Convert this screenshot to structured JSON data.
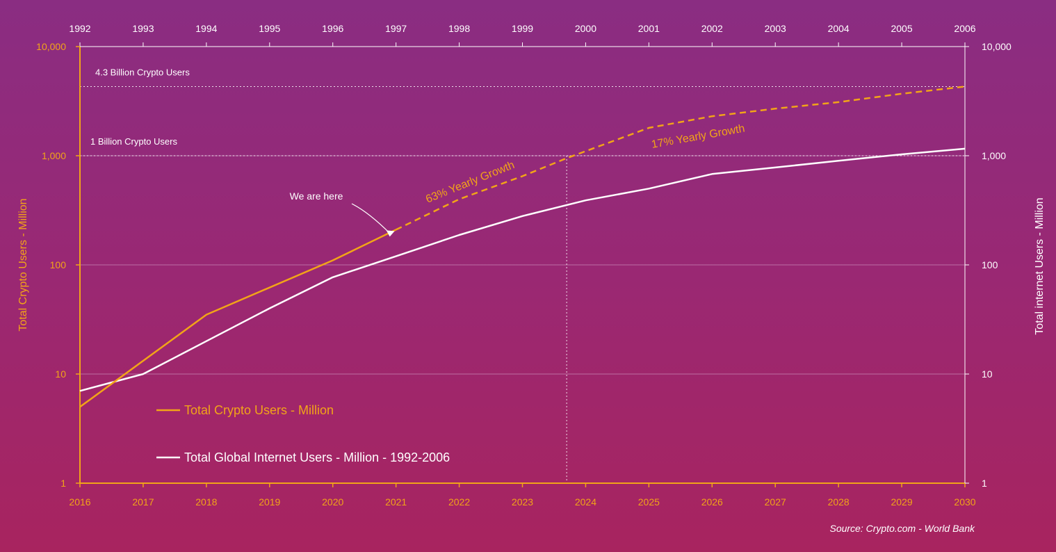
{
  "colors": {
    "crypto": "#f2a418",
    "internet": "#ffffff",
    "grid": "#d9a8cf",
    "background_top": "#8a2d82",
    "background_bottom": "#a8245f"
  },
  "chart_data": {
    "type": "line",
    "scale": "log",
    "x_bottom": [
      "2016",
      "2017",
      "2018",
      "2019",
      "2020",
      "2021",
      "2022",
      "2023",
      "2024",
      "2025",
      "2026",
      "2027",
      "2028",
      "2029",
      "2030"
    ],
    "x_top": [
      "1992",
      "1993",
      "1994",
      "1995",
      "1996",
      "1997",
      "1998",
      "1999",
      "2000",
      "2001",
      "2002",
      "2003",
      "2004",
      "2005",
      "2006"
    ],
    "y_ticks": [
      "1",
      "10",
      "100",
      "1,000",
      "10,000"
    ],
    "ylim": [
      1,
      10000
    ],
    "ylabel_left": "Total Crypto Users - Million",
    "ylabel_right": "Total internet Users - Million",
    "series": [
      {
        "name": "Total Crypto Users - Million",
        "color": "#f2a418",
        "x": [
          2016,
          2018,
          2020,
          2021
        ],
        "values": [
          5,
          35,
          110,
          210
        ],
        "projection": {
          "x": [
            2021,
            2022,
            2023,
            2023.7,
            2025,
            2026,
            2027,
            2028,
            2029,
            2030
          ],
          "values": [
            210,
            400,
            650,
            950,
            1800,
            2300,
            2700,
            3100,
            3700,
            4300
          ]
        }
      },
      {
        "name": "Total Global Internet Users - Million - 1992-2006",
        "color": "#ffffff",
        "x": [
          1992,
          1993,
          1994,
          1995,
          1996,
          1997,
          1998,
          1999,
          2000,
          2001,
          2002,
          2003,
          2004,
          2005,
          2006
        ],
        "values": [
          7,
          10,
          20,
          40,
          77,
          120,
          188,
          280,
          390,
          500,
          680,
          780,
          900,
          1030,
          1160
        ]
      }
    ],
    "reference_lines": [
      {
        "label": "4.3 Billion Crypto Users",
        "value": 4300
      },
      {
        "label": "1 Billion Crypto Users",
        "value": 1000
      }
    ],
    "marker_x": 2023.7,
    "annotations": {
      "we_are_here": "We are here",
      "growth_63": "63% Yearly Growth",
      "growth_17": "17% Yearly Growth"
    },
    "legend": [
      "Total Crypto Users - Million",
      "Total Global Internet Users - Million - 1992-2006"
    ],
    "legend_position": "bottom-left",
    "source": "Source: Crypto.com - World Bank"
  }
}
